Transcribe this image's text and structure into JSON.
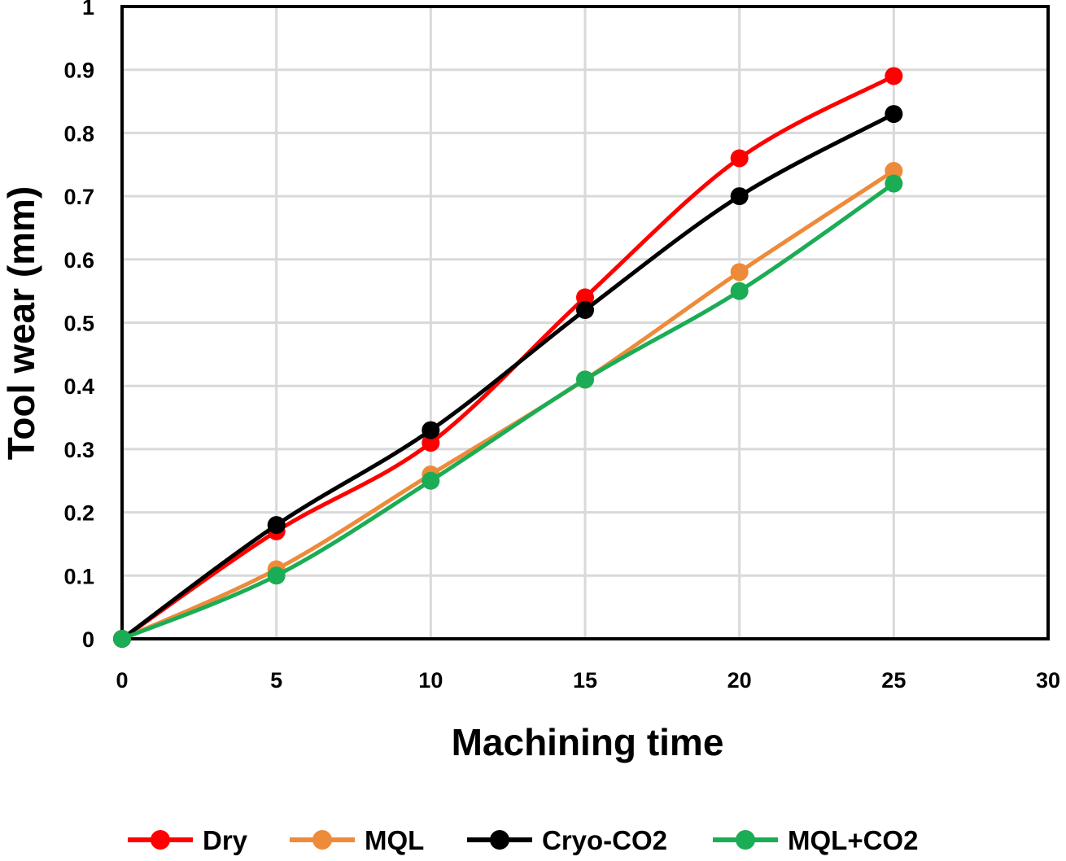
{
  "chart_data": {
    "type": "line",
    "title": "",
    "xlabel": "Machining time",
    "ylabel": "Tool wear (mm)",
    "xlim": [
      0,
      30
    ],
    "ylim": [
      0,
      1
    ],
    "xticks": [
      0,
      5,
      10,
      15,
      20,
      25,
      30
    ],
    "yticks": [
      0,
      0.1,
      0.2,
      0.3,
      0.4,
      0.5,
      0.6,
      0.7,
      0.8,
      0.9,
      1
    ],
    "xtick_labels": [
      "0",
      "5",
      "10",
      "15",
      "20",
      "25",
      "30"
    ],
    "ytick_labels": [
      "0",
      "0.1",
      "0.2",
      "0.3",
      "0.4",
      "0.5",
      "0.6",
      "0.7",
      "0.8",
      "0.9",
      "1"
    ],
    "grid": true,
    "legend_position": "bottom",
    "x": [
      0,
      5,
      10,
      15,
      20,
      25
    ],
    "series": [
      {
        "name": "Dry",
        "color": "#ff0000",
        "values": [
          0,
          0.17,
          0.31,
          0.54,
          0.76,
          0.89
        ]
      },
      {
        "name": "MQL",
        "color": "#ed8b3a",
        "values": [
          0,
          0.11,
          0.26,
          0.41,
          0.58,
          0.74
        ]
      },
      {
        "name": "Cryo-CO2",
        "color": "#000000",
        "values": [
          0,
          0.18,
          0.33,
          0.52,
          0.7,
          0.83
        ]
      },
      {
        "name": "MQL+CO2",
        "color": "#1aad55",
        "values": [
          0,
          0.1,
          0.25,
          0.41,
          0.55,
          0.72
        ]
      }
    ]
  }
}
